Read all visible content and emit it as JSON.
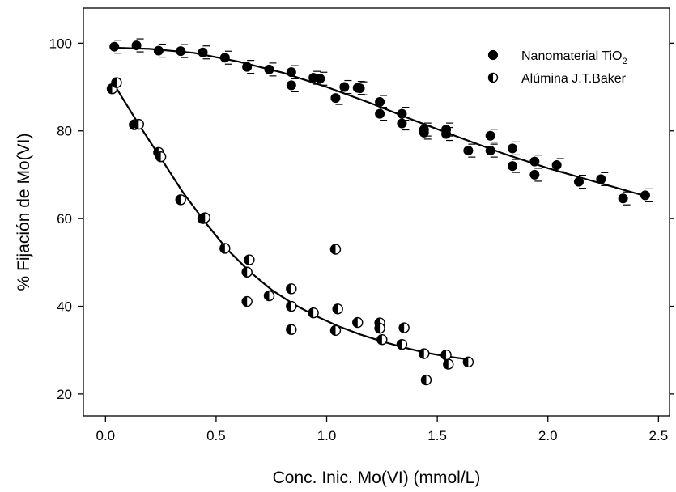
{
  "chart_data": {
    "type": "scatter",
    "xlabel": "Conc. Inic. Mo(VI) (mmol/L)",
    "ylabel": "% Fijación de Mo(VI)",
    "xlim": [
      -0.1,
      2.55
    ],
    "ylim": [
      15,
      108
    ],
    "xticks": [
      0.0,
      0.5,
      1.0,
      1.5,
      2.0,
      2.5
    ],
    "xtick_labels": [
      "0.0",
      "0.5",
      "1.0",
      "1.5",
      "2.0",
      "2.5"
    ],
    "yticks": [
      20,
      40,
      60,
      80,
      100
    ],
    "ytick_labels": [
      "20",
      "40",
      "60",
      "80",
      "100"
    ],
    "grid": false,
    "legend_position": "top-right",
    "legend": [
      {
        "label_main": "Nanomaterial TiO",
        "label_sub": "2",
        "marker": "filled-circle"
      },
      {
        "label_main": "Alúmina J.T.Baker",
        "label_sub": "",
        "marker": "half-filled-circle"
      }
    ],
    "series": [
      {
        "name": "Nanomaterial TiO2",
        "marker": "filled-circle",
        "error_bars": true,
        "points": [
          [
            0.04,
            99.2
          ],
          [
            0.14,
            99.5
          ],
          [
            0.24,
            98.3
          ],
          [
            0.34,
            98.2
          ],
          [
            0.44,
            97.9
          ],
          [
            0.54,
            96.7
          ],
          [
            0.64,
            94.6
          ],
          [
            0.74,
            94.0
          ],
          [
            0.84,
            93.4
          ],
          [
            0.84,
            90.4
          ],
          [
            0.94,
            92.1
          ],
          [
            0.97,
            91.9
          ],
          [
            1.04,
            87.5
          ],
          [
            1.08,
            90.0
          ],
          [
            1.14,
            89.8
          ],
          [
            1.15,
            89.7
          ],
          [
            1.24,
            86.6
          ],
          [
            1.24,
            83.9
          ],
          [
            1.34,
            83.9
          ],
          [
            1.34,
            81.7
          ],
          [
            1.44,
            80.3
          ],
          [
            1.44,
            79.6
          ],
          [
            1.54,
            80.3
          ],
          [
            1.54,
            79.3
          ],
          [
            1.64,
            75.5
          ],
          [
            1.74,
            78.9
          ],
          [
            1.74,
            75.5
          ],
          [
            1.84,
            76.0
          ],
          [
            1.84,
            72.0
          ],
          [
            1.94,
            73.0
          ],
          [
            1.94,
            70.0
          ],
          [
            2.04,
            72.2
          ],
          [
            2.14,
            68.4
          ],
          [
            2.24,
            69.0
          ],
          [
            2.34,
            64.6
          ],
          [
            2.44,
            65.3
          ]
        ],
        "fit": [
          [
            0.03,
            99.0
          ],
          [
            0.2,
            98.7
          ],
          [
            0.4,
            97.8
          ],
          [
            0.6,
            95.8
          ],
          [
            0.8,
            93.3
          ],
          [
            1.0,
            90.0
          ],
          [
            1.2,
            86.3
          ],
          [
            1.4,
            82.3
          ],
          [
            1.6,
            78.5
          ],
          [
            1.8,
            74.8
          ],
          [
            2.0,
            71.5
          ],
          [
            2.2,
            68.6
          ],
          [
            2.45,
            65.0
          ]
        ]
      },
      {
        "name": "Alúmina J.T.Baker",
        "marker": "half-filled-circle",
        "error_bars": false,
        "points": [
          [
            0.03,
            89.6
          ],
          [
            0.05,
            91.0
          ],
          [
            0.13,
            81.4
          ],
          [
            0.15,
            81.5
          ],
          [
            0.24,
            75.1
          ],
          [
            0.25,
            74.1
          ],
          [
            0.34,
            64.3
          ],
          [
            0.44,
            60.0
          ],
          [
            0.45,
            60.2
          ],
          [
            0.54,
            53.2
          ],
          [
            0.64,
            47.8
          ],
          [
            0.65,
            50.6
          ],
          [
            0.64,
            41.1
          ],
          [
            0.74,
            42.4
          ],
          [
            0.84,
            44.0
          ],
          [
            0.84,
            40.0
          ],
          [
            0.84,
            34.7
          ],
          [
            0.94,
            38.5
          ],
          [
            1.04,
            53.0
          ],
          [
            1.05,
            39.4
          ],
          [
            1.04,
            34.5
          ],
          [
            1.14,
            36.3
          ],
          [
            1.24,
            36.2
          ],
          [
            1.24,
            35.0
          ],
          [
            1.25,
            32.4
          ],
          [
            1.34,
            31.3
          ],
          [
            1.35,
            35.1
          ],
          [
            1.44,
            29.2
          ],
          [
            1.45,
            23.2
          ],
          [
            1.54,
            28.9
          ],
          [
            1.55,
            26.8
          ],
          [
            1.64,
            27.3
          ]
        ],
        "fit": [
          [
            0.04,
            90.5
          ],
          [
            0.15,
            81.5
          ],
          [
            0.25,
            73.8
          ],
          [
            0.35,
            66.0
          ],
          [
            0.45,
            59.2
          ],
          [
            0.55,
            53.0
          ],
          [
            0.65,
            48.0
          ],
          [
            0.75,
            43.8
          ],
          [
            0.85,
            40.5
          ],
          [
            0.95,
            37.8
          ],
          [
            1.05,
            35.5
          ],
          [
            1.15,
            33.6
          ],
          [
            1.25,
            32.0
          ],
          [
            1.35,
            30.6
          ],
          [
            1.45,
            29.4
          ],
          [
            1.55,
            28.5
          ],
          [
            1.64,
            27.9
          ]
        ]
      }
    ]
  }
}
